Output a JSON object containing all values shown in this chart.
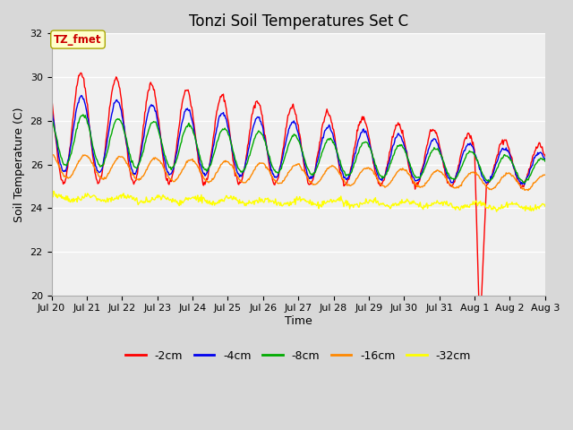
{
  "title": "Tonzi Soil Temperatures Set C",
  "xlabel": "Time",
  "ylabel": "Soil Temperature (C)",
  "ylim": [
    20,
    32
  ],
  "yticks": [
    20,
    22,
    24,
    26,
    28,
    30,
    32
  ],
  "annotation_label": "TZ_fmet",
  "annotation_color": "#cc0000",
  "annotation_bg": "#ffffcc",
  "annotation_border": "#aaa800",
  "series_colors": [
    "#ff0000",
    "#0000ee",
    "#00aa00",
    "#ff8800",
    "#ffff00"
  ],
  "series_labels": [
    "-2cm",
    "-4cm",
    "-8cm",
    "-16cm",
    "-32cm"
  ],
  "outer_bg": "#d8d8d8",
  "plot_bg": "#f0f0f0",
  "xlabels": [
    "Jul 20",
    "Jul 21",
    "Jul 22",
    "Jul 23",
    "Jul 24",
    "Jul 25",
    "Jul 26",
    "Jul 27",
    "Jul 28",
    "Jul 29",
    "Jul 30",
    "Jul 31",
    "Aug 1",
    "Aug 2",
    "Aug 3"
  ],
  "legend_fontsize": 9,
  "title_fontsize": 12,
  "axis_fontsize": 8,
  "line_width": 1.0
}
